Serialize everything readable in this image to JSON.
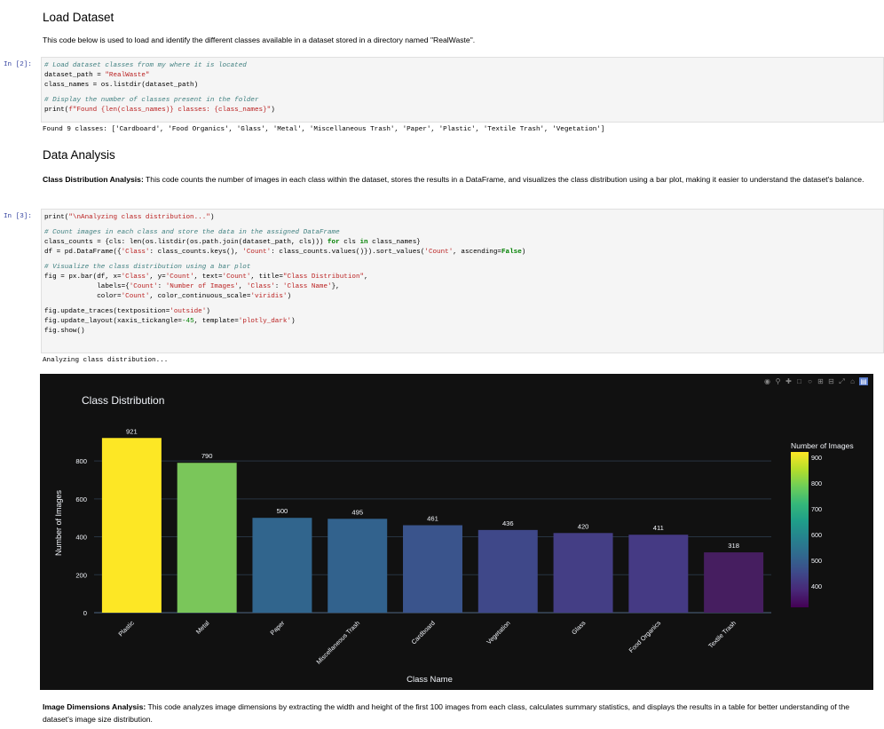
{
  "section1": {
    "title": "Load Dataset",
    "desc": "This code below is used to load and identify the different classes available in a dataset stored in a directory named \"RealWaste\"."
  },
  "cell2": {
    "prompt": "In [2]:",
    "code": {
      "l1": "# Load dataset classes from my where it is located",
      "l2a": "dataset_path = ",
      "l2b": "\"RealWaste\"",
      "l3": "class_names = os.listdir(dataset_path)",
      "l4": "# Display the number of classes present in the folder",
      "l5a": "print(",
      "l5b": "f\"Found {len(class_names)} classes: {class_names}\"",
      "l5c": ")"
    },
    "output": "Found 9 classes: ['Cardboard', 'Food Organics', 'Glass', 'Metal', 'Miscellaneous Trash', 'Paper', 'Plastic', 'Textile Trash', 'Vegetation']"
  },
  "section2": {
    "title": "Data Analysis",
    "desc_bold": "Class Distribution Analysis:",
    "desc": " This code counts the number of images in each class within the dataset, stores the results in a DataFrame, and visualizes the class distribution using a bar plot, making it easier to understand the dataset's balance."
  },
  "cell3": {
    "prompt": "In [3]:",
    "code": {
      "l1a": "print(",
      "l1b": "\"\\nAnalyzing class distribution...\"",
      "l1c": ")",
      "l2": "# Count images in each class and store the data in the assigned DataFrame",
      "l3a": "class_counts = {cls: len(os.listdir(os.path.join(dataset_path, cls))) ",
      "l3b": "for",
      "l3c": " cls ",
      "l3d": "in",
      "l3e": " class_names}",
      "l4a": "df = pd.DataFrame({",
      "l4b": "'Class'",
      "l4c": ": class_counts.keys(), ",
      "l4d": "'Count'",
      "l4e": ": class_counts.values()}).sort_values(",
      "l4f": "'Count'",
      "l4g": ", ascending=",
      "l4h": "False",
      "l4i": ")",
      "l5": "# Visualize the class distribution using a bar plot",
      "l6a": "fig = px.bar(df, x=",
      "l6b": "'Class'",
      "l6c": ", y=",
      "l6d": "'Count'",
      "l6e": ", text=",
      "l6f": "'Count'",
      "l6g": ", title=",
      "l6h": "\"Class Distribution\"",
      "l6i": ",",
      "l7a": "             labels={",
      "l7b": "'Count'",
      "l7c": ": ",
      "l7d": "'Number of Images'",
      "l7e": ", ",
      "l7f": "'Class'",
      "l7g": ": ",
      "l7h": "'Class Name'",
      "l7i": "},",
      "l8a": "             color=",
      "l8b": "'Count'",
      "l8c": ", color_continuous_scale=",
      "l8d": "'viridis'",
      "l8e": ")",
      "l9a": "fig.update_traces(textposition=",
      "l9b": "'outside'",
      "l9c": ")",
      "l10a": "fig.update_layout(xaxis_tickangle=",
      "l10b": "-45",
      "l10c": ", template=",
      "l10d": "'plotly_dark'",
      "l10e": ")",
      "l11": "fig.show()"
    },
    "output": "Analyzing class distribution..."
  },
  "chart_data": {
    "type": "bar",
    "title": "Class Distribution",
    "xlabel": "Class Name",
    "ylabel": "Number of Images",
    "categories": [
      "Plastic",
      "Metal",
      "Paper",
      "Miscellaneous Trash",
      "Cardboard",
      "Vegetation",
      "Glass",
      "Food Organics",
      "Textile Trash"
    ],
    "values": [
      921,
      790,
      500,
      495,
      461,
      436,
      420,
      411,
      318
    ],
    "colors": [
      "#fde725",
      "#7ac65a",
      "#31658d",
      "#32628d",
      "#3a548c",
      "#3f4889",
      "#443e85",
      "#453a84",
      "#461e60"
    ],
    "yticks": [
      0,
      200,
      400,
      600,
      800
    ],
    "ylim": [
      0,
      969
    ],
    "colorbar": {
      "title": "Number of Images",
      "ticks": [
        900,
        800,
        700,
        600,
        500,
        400
      ],
      "range": [
        318,
        921
      ],
      "gradient": [
        "#fde725",
        "#b5de2b",
        "#6ece58",
        "#35b779",
        "#1f9e89",
        "#26828e",
        "#31688e",
        "#3e4989",
        "#482878",
        "#440154"
      ]
    },
    "template": "plotly_dark",
    "grid": true,
    "legend_position": "right"
  },
  "modebar": {
    "icons": [
      "camera-icon",
      "zoom-icon",
      "pan-icon",
      "box-select-icon",
      "lasso-icon",
      "zoom-in-icon",
      "zoom-out-icon",
      "autoscale-icon",
      "home-icon",
      "plotly-logo-icon"
    ]
  },
  "section3": {
    "desc_bold": "Image Dimensions Analysis:",
    "desc": " This code analyzes image dimensions by extracting the width and height of the first 100 images from each class, calculates summary statistics, and displays the results in a table for better understanding of the dataset's image size distribution."
  }
}
